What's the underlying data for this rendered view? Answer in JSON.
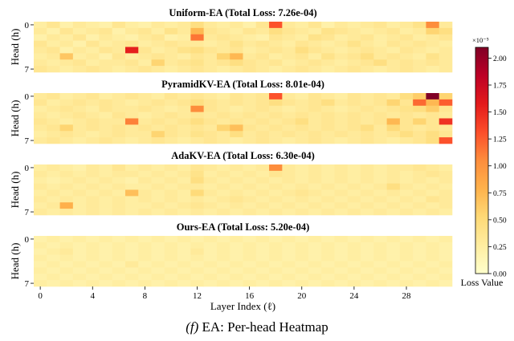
{
  "caption": {
    "label": "(f)",
    "text": "EA: Per-head Heatmap"
  },
  "colorbar": {
    "title": "Loss Value",
    "exponent": "×10⁻⁵",
    "ticks": [
      0.0,
      0.25,
      0.5,
      0.75,
      1.0,
      1.25,
      1.5,
      1.75,
      2.0
    ],
    "tick_labels": [
      "0.00",
      "0.25",
      "0.50",
      "0.75",
      "1.00",
      "1.25",
      "1.50",
      "1.75",
      "2.00"
    ],
    "colors": [
      "#ffffcc",
      "#ffeda0",
      "#fed976",
      "#feb24c",
      "#fd8d3c",
      "#fc4e2a",
      "#e31a1c",
      "#bd0026",
      "#800026"
    ]
  },
  "chart_data": [
    {
      "type": "heatmap",
      "title": "Uniform-EA (Total Loss: 7.26e-04)",
      "ylabel": "Head (h)",
      "xlabel": "",
      "x_ticks": [],
      "y_ticks": [
        0,
        7
      ],
      "vmin": 0,
      "vmax": 2.1,
      "value_unit": "×10⁻⁵",
      "rows": 8,
      "cols": 32,
      "values": [
        [
          0.25,
          0.35,
          0.2,
          0.3,
          0.25,
          0.2,
          0.35,
          0.25,
          0.2,
          0.3,
          0.25,
          0.3,
          0.45,
          0.3,
          0.25,
          0.3,
          0.2,
          0.35,
          1.3,
          0.3,
          0.25,
          0.35,
          0.2,
          0.3,
          0.25,
          0.3,
          0.35,
          0.25,
          0.3,
          0.4,
          1.05,
          0.3
        ],
        [
          0.3,
          0.2,
          0.35,
          0.25,
          0.3,
          0.35,
          0.2,
          0.3,
          0.35,
          0.25,
          0.4,
          0.3,
          0.75,
          0.35,
          0.3,
          0.25,
          0.35,
          0.3,
          0.45,
          0.35,
          0.3,
          0.25,
          0.4,
          0.35,
          0.3,
          0.25,
          0.3,
          0.35,
          0.25,
          0.3,
          0.55,
          0.45
        ],
        [
          0.2,
          0.3,
          0.25,
          0.35,
          0.2,
          0.3,
          0.25,
          0.2,
          0.3,
          0.35,
          0.2,
          0.25,
          1.15,
          0.3,
          0.35,
          0.3,
          0.25,
          0.2,
          0.35,
          0.3,
          0.25,
          0.4,
          0.35,
          0.25,
          0.3,
          0.35,
          0.25,
          0.3,
          0.35,
          0.25,
          0.3,
          0.35
        ],
        [
          0.35,
          0.25,
          0.3,
          0.2,
          0.35,
          0.25,
          0.3,
          0.35,
          0.25,
          0.3,
          0.35,
          0.3,
          0.3,
          0.25,
          0.3,
          0.4,
          0.3,
          0.35,
          0.3,
          0.25,
          0.35,
          0.3,
          0.25,
          0.3,
          0.4,
          0.3,
          0.25,
          0.35,
          0.3,
          0.35,
          0.3,
          0.25
        ],
        [
          0.3,
          0.35,
          0.2,
          0.3,
          0.25,
          0.35,
          0.3,
          1.55,
          0.35,
          0.25,
          0.3,
          0.4,
          0.45,
          0.35,
          0.3,
          0.35,
          0.25,
          0.3,
          0.35,
          0.3,
          0.45,
          0.35,
          0.3,
          0.25,
          0.3,
          0.35,
          0.3,
          0.25,
          0.35,
          0.3,
          0.25,
          0.3
        ],
        [
          0.25,
          0.3,
          0.65,
          0.25,
          0.3,
          0.2,
          0.35,
          0.25,
          0.3,
          0.35,
          0.3,
          0.25,
          0.35,
          0.3,
          0.55,
          0.75,
          0.3,
          0.35,
          0.25,
          0.3,
          0.35,
          0.25,
          0.4,
          0.3,
          0.35,
          0.45,
          0.3,
          0.35,
          0.3,
          0.25,
          0.4,
          0.3
        ],
        [
          0.3,
          0.25,
          0.3,
          0.35,
          0.25,
          0.3,
          0.3,
          0.35,
          0.25,
          0.55,
          0.3,
          0.35,
          0.4,
          0.3,
          0.35,
          0.45,
          0.35,
          0.3,
          0.35,
          0.25,
          0.3,
          0.35,
          0.3,
          0.25,
          0.3,
          0.35,
          0.45,
          0.3,
          0.35,
          0.3,
          0.35,
          0.3
        ],
        [
          0.35,
          0.3,
          0.25,
          0.3,
          0.35,
          0.3,
          0.25,
          0.3,
          0.35,
          0.3,
          0.25,
          0.3,
          0.35,
          0.3,
          0.25,
          0.3,
          0.35,
          0.3,
          0.25,
          0.3,
          0.35,
          0.3,
          0.25,
          0.3,
          0.35,
          0.3,
          0.25,
          0.3,
          0.35,
          0.3,
          0.25,
          0.3
        ]
      ]
    },
    {
      "type": "heatmap",
      "title": "PyramidKV-EA (Total Loss: 8.01e-04)",
      "ylabel": "Head (h)",
      "xlabel": "",
      "x_ticks": [],
      "y_ticks": [
        0,
        7
      ],
      "vmin": 0,
      "vmax": 2.1,
      "value_unit": "×10⁻⁵",
      "rows": 8,
      "cols": 32,
      "values": [
        [
          0.3,
          0.35,
          0.25,
          0.3,
          0.35,
          0.25,
          0.3,
          0.35,
          0.3,
          0.25,
          0.35,
          0.3,
          0.35,
          0.3,
          0.25,
          0.35,
          0.3,
          0.35,
          1.3,
          0.3,
          0.25,
          0.35,
          0.3,
          0.25,
          0.35,
          0.3,
          0.35,
          0.3,
          0.45,
          0.6,
          2.1,
          0.55
        ],
        [
          0.35,
          0.25,
          0.3,
          0.35,
          0.3,
          0.35,
          0.3,
          0.25,
          0.3,
          0.35,
          0.3,
          0.35,
          0.45,
          0.35,
          0.3,
          0.35,
          0.3,
          0.35,
          0.45,
          0.35,
          0.3,
          0.35,
          0.45,
          0.3,
          0.35,
          0.3,
          0.35,
          0.55,
          0.35,
          1.2,
          0.75,
          1.25
        ],
        [
          0.25,
          0.3,
          0.35,
          0.3,
          0.25,
          0.35,
          0.3,
          0.3,
          0.35,
          0.3,
          0.25,
          0.3,
          1.05,
          0.35,
          0.3,
          0.25,
          0.3,
          0.35,
          0.3,
          0.25,
          0.3,
          0.35,
          0.3,
          0.25,
          0.3,
          0.35,
          0.3,
          0.35,
          0.4,
          0.45,
          0.6,
          0.35
        ],
        [
          0.3,
          0.25,
          0.3,
          0.35,
          0.3,
          0.25,
          0.35,
          0.3,
          0.25,
          0.3,
          0.35,
          0.3,
          0.35,
          0.3,
          0.35,
          0.3,
          0.35,
          0.3,
          0.35,
          0.3,
          0.35,
          0.3,
          0.35,
          0.3,
          0.35,
          0.3,
          0.35,
          0.3,
          0.35,
          0.3,
          0.35,
          0.3
        ],
        [
          0.35,
          0.3,
          0.25,
          0.3,
          0.35,
          0.3,
          0.3,
          1.1,
          0.3,
          0.35,
          0.3,
          0.35,
          0.45,
          0.35,
          0.3,
          0.35,
          0.3,
          0.35,
          0.3,
          0.35,
          0.45,
          0.3,
          0.35,
          0.3,
          0.35,
          0.3,
          0.35,
          0.75,
          0.35,
          0.55,
          0.35,
          1.45
        ],
        [
          0.3,
          0.35,
          0.55,
          0.3,
          0.35,
          0.3,
          0.35,
          0.3,
          0.35,
          0.3,
          0.35,
          0.3,
          0.35,
          0.3,
          0.55,
          0.7,
          0.35,
          0.3,
          0.35,
          0.3,
          0.35,
          0.3,
          0.35,
          0.3,
          0.35,
          0.45,
          0.3,
          0.5,
          0.35,
          0.3,
          0.35,
          0.3
        ],
        [
          0.25,
          0.3,
          0.35,
          0.3,
          0.25,
          0.3,
          0.35,
          0.3,
          0.3,
          0.55,
          0.35,
          0.3,
          0.4,
          0.35,
          0.3,
          0.45,
          0.3,
          0.35,
          0.3,
          0.35,
          0.3,
          0.35,
          0.3,
          0.35,
          0.3,
          0.35,
          0.3,
          0.35,
          0.45,
          0.35,
          0.45,
          0.35
        ],
        [
          0.3,
          0.35,
          0.3,
          0.25,
          0.3,
          0.35,
          0.3,
          0.25,
          0.3,
          0.35,
          0.3,
          0.25,
          0.3,
          0.35,
          0.3,
          0.25,
          0.3,
          0.35,
          0.3,
          0.25,
          0.3,
          0.35,
          0.3,
          0.25,
          0.3,
          0.35,
          0.3,
          0.25,
          0.3,
          0.35,
          0.45,
          1.3
        ]
      ]
    },
    {
      "type": "heatmap",
      "title": "AdaKV-EA (Total Loss: 6.30e-04)",
      "ylabel": "Head (h)",
      "xlabel": "",
      "x_ticks": [],
      "y_ticks": [
        0,
        7
      ],
      "vmin": 0,
      "vmax": 2.1,
      "value_unit": "×10⁻⁵",
      "rows": 8,
      "cols": 32,
      "values": [
        [
          0.25,
          0.3,
          0.25,
          0.2,
          0.3,
          0.25,
          0.35,
          0.25,
          0.3,
          0.25,
          0.3,
          0.25,
          0.35,
          0.3,
          0.25,
          0.3,
          0.25,
          0.3,
          1.05,
          0.3,
          0.25,
          0.3,
          0.25,
          0.3,
          0.25,
          0.3,
          0.25,
          0.3,
          0.3,
          0.35,
          0.3,
          0.25
        ],
        [
          0.3,
          0.25,
          0.3,
          0.25,
          0.3,
          0.25,
          0.3,
          0.3,
          0.25,
          0.3,
          0.25,
          0.3,
          0.4,
          0.25,
          0.3,
          0.25,
          0.3,
          0.25,
          0.35,
          0.3,
          0.25,
          0.3,
          0.25,
          0.3,
          0.25,
          0.3,
          0.25,
          0.3,
          0.25,
          0.3,
          0.35,
          0.3
        ],
        [
          0.25,
          0.2,
          0.25,
          0.3,
          0.25,
          0.3,
          0.25,
          0.2,
          0.3,
          0.25,
          0.3,
          0.25,
          0.45,
          0.3,
          0.25,
          0.3,
          0.25,
          0.3,
          0.25,
          0.3,
          0.25,
          0.3,
          0.25,
          0.3,
          0.25,
          0.3,
          0.25,
          0.3,
          0.25,
          0.3,
          0.25,
          0.3
        ],
        [
          0.3,
          0.25,
          0.3,
          0.25,
          0.3,
          0.25,
          0.3,
          0.25,
          0.25,
          0.3,
          0.25,
          0.3,
          0.3,
          0.25,
          0.3,
          0.25,
          0.3,
          0.25,
          0.3,
          0.25,
          0.3,
          0.25,
          0.3,
          0.25,
          0.3,
          0.25,
          0.3,
          0.45,
          0.3,
          0.25,
          0.3,
          0.25
        ],
        [
          0.25,
          0.3,
          0.25,
          0.3,
          0.25,
          0.3,
          0.25,
          0.7,
          0.3,
          0.25,
          0.3,
          0.25,
          0.5,
          0.3,
          0.25,
          0.3,
          0.25,
          0.3,
          0.25,
          0.3,
          0.35,
          0.3,
          0.25,
          0.3,
          0.25,
          0.3,
          0.25,
          0.3,
          0.25,
          0.3,
          0.25,
          0.3
        ],
        [
          0.3,
          0.25,
          0.3,
          0.25,
          0.3,
          0.25,
          0.3,
          0.25,
          0.3,
          0.25,
          0.3,
          0.25,
          0.3,
          0.25,
          0.3,
          0.35,
          0.3,
          0.25,
          0.3,
          0.25,
          0.3,
          0.25,
          0.3,
          0.25,
          0.3,
          0.25,
          0.3,
          0.25,
          0.3,
          0.25,
          0.35,
          0.3
        ],
        [
          0.25,
          0.3,
          0.8,
          0.25,
          0.3,
          0.25,
          0.3,
          0.25,
          0.25,
          0.3,
          0.25,
          0.3,
          0.35,
          0.3,
          0.25,
          0.3,
          0.25,
          0.3,
          0.25,
          0.3,
          0.25,
          0.3,
          0.25,
          0.3,
          0.25,
          0.3,
          0.25,
          0.3,
          0.25,
          0.3,
          0.25,
          0.3
        ],
        [
          0.3,
          0.25,
          0.3,
          0.25,
          0.3,
          0.25,
          0.3,
          0.25,
          0.3,
          0.25,
          0.3,
          0.25,
          0.3,
          0.25,
          0.3,
          0.25,
          0.3,
          0.25,
          0.3,
          0.25,
          0.3,
          0.25,
          0.3,
          0.25,
          0.3,
          0.25,
          0.3,
          0.25,
          0.3,
          0.25,
          0.3,
          0.25
        ]
      ]
    },
    {
      "type": "heatmap",
      "title": "Ours-EA (Total Loss: 5.20e-04)",
      "ylabel": "Head (h)",
      "xlabel": "Layer Index (ℓ)",
      "x_ticks": [
        0,
        4,
        8,
        12,
        16,
        20,
        24,
        28
      ],
      "y_ticks": [
        0,
        7
      ],
      "vmin": 0,
      "vmax": 2.1,
      "value_unit": "×10⁻⁵",
      "rows": 8,
      "cols": 32,
      "values": [
        [
          0.2,
          0.25,
          0.2,
          0.25,
          0.2,
          0.25,
          0.2,
          0.25,
          0.2,
          0.25,
          0.2,
          0.25,
          0.2,
          0.25,
          0.2,
          0.25,
          0.2,
          0.25,
          0.2,
          0.25,
          0.2,
          0.25,
          0.2,
          0.25,
          0.2,
          0.25,
          0.2,
          0.25,
          0.2,
          0.25,
          0.2,
          0.25
        ],
        [
          0.25,
          0.2,
          0.25,
          0.2,
          0.25,
          0.2,
          0.25,
          0.2,
          0.25,
          0.2,
          0.25,
          0.2,
          0.25,
          0.2,
          0.25,
          0.2,
          0.25,
          0.2,
          0.25,
          0.2,
          0.25,
          0.2,
          0.25,
          0.2,
          0.25,
          0.2,
          0.25,
          0.2,
          0.25,
          0.2,
          0.25,
          0.2
        ],
        [
          0.2,
          0.25,
          0.3,
          0.2,
          0.25,
          0.2,
          0.25,
          0.2,
          0.25,
          0.2,
          0.25,
          0.2,
          0.3,
          0.2,
          0.25,
          0.2,
          0.25,
          0.2,
          0.25,
          0.2,
          0.25,
          0.2,
          0.25,
          0.2,
          0.25,
          0.2,
          0.25,
          0.2,
          0.25,
          0.2,
          0.25,
          0.2
        ],
        [
          0.25,
          0.2,
          0.25,
          0.2,
          0.25,
          0.2,
          0.25,
          0.2,
          0.25,
          0.2,
          0.25,
          0.2,
          0.25,
          0.2,
          0.25,
          0.2,
          0.25,
          0.2,
          0.25,
          0.2,
          0.25,
          0.2,
          0.25,
          0.2,
          0.25,
          0.2,
          0.25,
          0.2,
          0.25,
          0.2,
          0.25,
          0.2
        ],
        [
          0.2,
          0.25,
          0.2,
          0.25,
          0.2,
          0.25,
          0.2,
          0.3,
          0.2,
          0.25,
          0.2,
          0.25,
          0.2,
          0.25,
          0.2,
          0.25,
          0.2,
          0.25,
          0.2,
          0.25,
          0.2,
          0.25,
          0.2,
          0.25,
          0.2,
          0.25,
          0.2,
          0.25,
          0.2,
          0.25,
          0.2,
          0.25
        ],
        [
          0.25,
          0.2,
          0.25,
          0.2,
          0.25,
          0.2,
          0.25,
          0.2,
          0.25,
          0.2,
          0.25,
          0.2,
          0.25,
          0.2,
          0.25,
          0.2,
          0.25,
          0.2,
          0.25,
          0.2,
          0.25,
          0.2,
          0.25,
          0.2,
          0.25,
          0.2,
          0.25,
          0.2,
          0.25,
          0.2,
          0.25,
          0.2
        ],
        [
          0.2,
          0.25,
          0.2,
          0.25,
          0.2,
          0.25,
          0.2,
          0.25,
          0.2,
          0.25,
          0.2,
          0.25,
          0.2,
          0.25,
          0.2,
          0.25,
          0.2,
          0.25,
          0.2,
          0.25,
          0.2,
          0.25,
          0.2,
          0.25,
          0.2,
          0.25,
          0.2,
          0.25,
          0.2,
          0.25,
          0.2,
          0.25
        ],
        [
          0.25,
          0.2,
          0.25,
          0.2,
          0.25,
          0.2,
          0.25,
          0.2,
          0.25,
          0.2,
          0.25,
          0.2,
          0.25,
          0.2,
          0.25,
          0.2,
          0.25,
          0.2,
          0.25,
          0.2,
          0.25,
          0.2,
          0.25,
          0.2,
          0.25,
          0.2,
          0.25,
          0.2,
          0.25,
          0.2,
          0.25,
          0.2
        ]
      ]
    }
  ]
}
